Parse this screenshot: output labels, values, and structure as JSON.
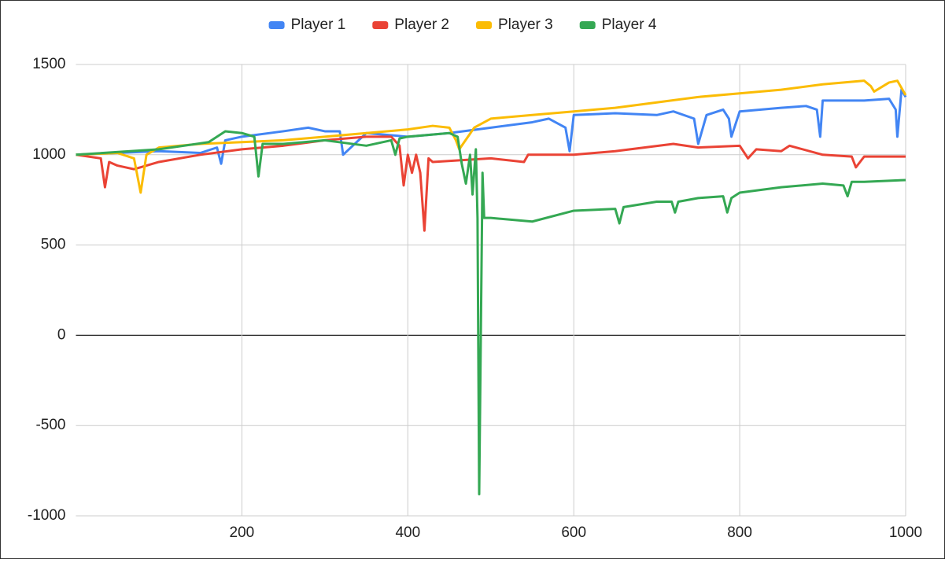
{
  "chart_data": {
    "type": "line",
    "xlim": [
      0,
      1000
    ],
    "xticks": [
      200,
      400,
      600,
      800,
      1000
    ],
    "ylim": [
      -1000,
      1500
    ],
    "yticks": [
      -1000,
      -500,
      0,
      500,
      1000,
      1500
    ],
    "grid": true,
    "legend": "top",
    "series": [
      {
        "name": "Player 1",
        "color": "#4285f4",
        "x": [
          0,
          50,
          100,
          150,
          170,
          175,
          180,
          200,
          250,
          280,
          300,
          318,
          322,
          350,
          400,
          450,
          500,
          550,
          570,
          590,
          595,
          600,
          650,
          700,
          720,
          745,
          750,
          760,
          780,
          787,
          790,
          800,
          850,
          880,
          893,
          897,
          900,
          950,
          980,
          988,
          990,
          995,
          1000
        ],
        "values": [
          1000,
          1010,
          1020,
          1010,
          1040,
          950,
          1080,
          1100,
          1130,
          1150,
          1130,
          1130,
          1000,
          1120,
          1100,
          1120,
          1150,
          1180,
          1200,
          1150,
          1020,
          1220,
          1230,
          1220,
          1240,
          1200,
          1060,
          1220,
          1250,
          1200,
          1100,
          1240,
          1260,
          1270,
          1250,
          1100,
          1300,
          1300,
          1310,
          1250,
          1100,
          1360,
          1320
        ]
      },
      {
        "name": "Player 2",
        "color": "#ea4335",
        "x": [
          0,
          30,
          35,
          40,
          50,
          70,
          100,
          150,
          200,
          250,
          300,
          350,
          380,
          390,
          395,
          400,
          405,
          410,
          415,
          420,
          425,
          430,
          500,
          540,
          545,
          600,
          650,
          720,
          750,
          800,
          810,
          820,
          850,
          860,
          900,
          935,
          940,
          950,
          1000
        ],
        "values": [
          1000,
          980,
          820,
          960,
          940,
          920,
          960,
          1000,
          1030,
          1050,
          1080,
          1100,
          1100,
          1050,
          830,
          1000,
          900,
          1000,
          900,
          580,
          980,
          960,
          980,
          960,
          1000,
          1000,
          1020,
          1060,
          1040,
          1050,
          980,
          1030,
          1020,
          1050,
          1000,
          990,
          930,
          990,
          990
        ]
      },
      {
        "name": "Player 3",
        "color": "#fbbc04",
        "x": [
          0,
          50,
          70,
          78,
          85,
          100,
          150,
          200,
          250,
          300,
          350,
          400,
          430,
          450,
          458,
          462,
          480,
          500,
          550,
          600,
          650,
          700,
          750,
          800,
          850,
          900,
          950,
          958,
          962,
          980,
          990,
          1000
        ],
        "values": [
          1000,
          1010,
          980,
          790,
          1000,
          1040,
          1060,
          1070,
          1080,
          1100,
          1120,
          1140,
          1160,
          1150,
          1080,
          1030,
          1150,
          1200,
          1220,
          1240,
          1260,
          1290,
          1320,
          1340,
          1360,
          1390,
          1410,
          1380,
          1350,
          1400,
          1410,
          1330
        ]
      },
      {
        "name": "Player 4",
        "color": "#34a853",
        "x": [
          0,
          100,
          160,
          180,
          200,
          215,
          220,
          225,
          250,
          300,
          350,
          380,
          385,
          390,
          400,
          450,
          460,
          465,
          470,
          475,
          478,
          482,
          484,
          486,
          490,
          492,
          500,
          550,
          600,
          650,
          655,
          660,
          700,
          718,
          722,
          726,
          750,
          780,
          785,
          790,
          800,
          850,
          900,
          925,
          930,
          935,
          950,
          1000
        ],
        "values": [
          1000,
          1030,
          1070,
          1130,
          1120,
          1100,
          880,
          1060,
          1060,
          1080,
          1050,
          1080,
          1000,
          1090,
          1100,
          1120,
          1100,
          950,
          840,
          1000,
          780,
          1030,
          650,
          -880,
          900,
          650,
          650,
          630,
          690,
          700,
          620,
          710,
          740,
          740,
          680,
          740,
          760,
          770,
          680,
          760,
          790,
          820,
          840,
          830,
          770,
          850,
          850,
          860
        ]
      }
    ]
  }
}
